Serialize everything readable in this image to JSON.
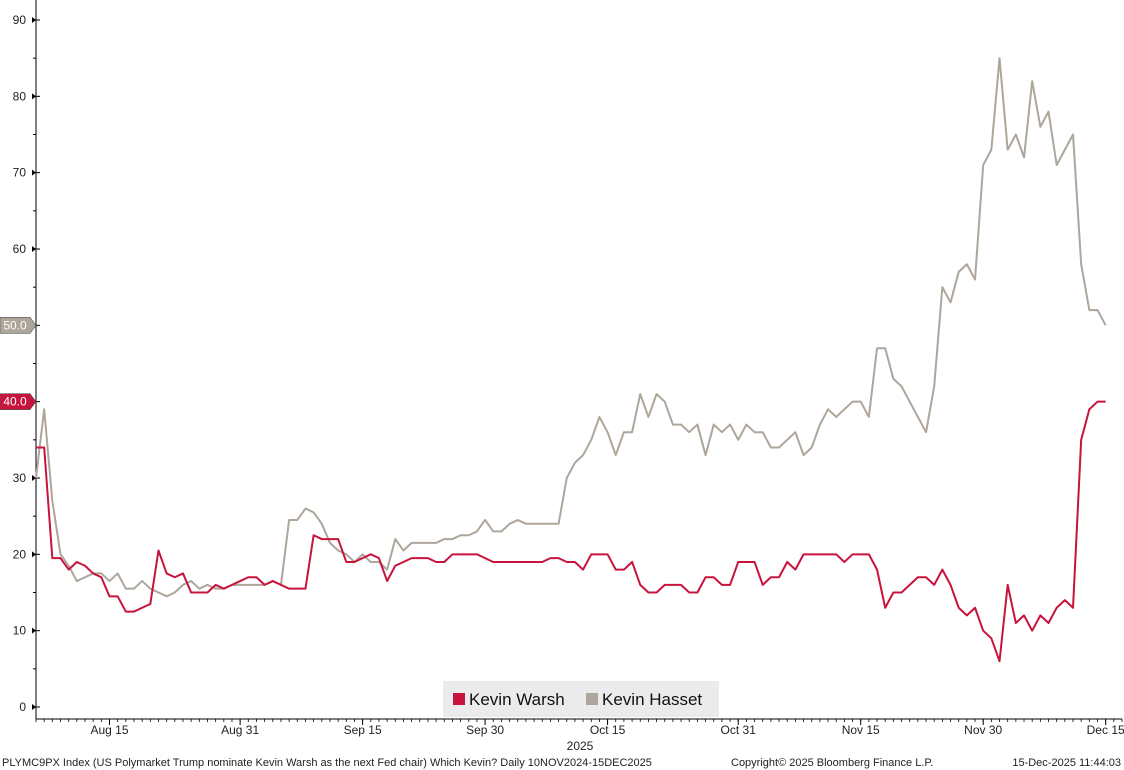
{
  "chart_data": {
    "type": "line",
    "title": "",
    "xlabel": "2025",
    "ylabel": "",
    "ylim": [
      0,
      90
    ],
    "y_ticks": [
      0,
      10,
      20,
      30,
      40,
      50,
      60,
      70,
      80,
      90
    ],
    "x_ticks": [
      "Aug 15",
      "Aug 31",
      "Sep 15",
      "Sep 30",
      "Oct 15",
      "Oct 31",
      "Nov 15",
      "Nov 30",
      "Dec 15"
    ],
    "x_tick_dates": [
      "2025-08-15",
      "2025-08-31",
      "2025-09-15",
      "2025-09-30",
      "2025-10-15",
      "2025-10-31",
      "2025-11-15",
      "2025-11-30",
      "2025-12-15"
    ],
    "x_range": [
      "2025-08-06",
      "2025-12-17"
    ],
    "grid": false,
    "legend_position": "bottom-center",
    "series": [
      {
        "name": "Kevin Warsh",
        "color": "#c8143c",
        "last_value_tag": "40.0",
        "points": [
          [
            "2025-08-06",
            34.0
          ],
          [
            "2025-08-07",
            34.0
          ],
          [
            "2025-08-08",
            19.5
          ],
          [
            "2025-08-09",
            19.5
          ],
          [
            "2025-08-10",
            18.0
          ],
          [
            "2025-08-11",
            19.0
          ],
          [
            "2025-08-12",
            18.5
          ],
          [
            "2025-08-13",
            17.5
          ],
          [
            "2025-08-14",
            17.0
          ],
          [
            "2025-08-15",
            14.5
          ],
          [
            "2025-08-16",
            14.5
          ],
          [
            "2025-08-17",
            12.5
          ],
          [
            "2025-08-18",
            12.5
          ],
          [
            "2025-08-19",
            13.0
          ],
          [
            "2025-08-20",
            13.5
          ],
          [
            "2025-08-21",
            20.5
          ],
          [
            "2025-08-22",
            17.5
          ],
          [
            "2025-08-23",
            17.0
          ],
          [
            "2025-08-24",
            17.5
          ],
          [
            "2025-08-25",
            15.0
          ],
          [
            "2025-08-26",
            15.0
          ],
          [
            "2025-08-27",
            15.0
          ],
          [
            "2025-08-28",
            16.0
          ],
          [
            "2025-08-29",
            15.5
          ],
          [
            "2025-08-30",
            16.0
          ],
          [
            "2025-08-31",
            16.5
          ],
          [
            "2025-09-01",
            17.0
          ],
          [
            "2025-09-02",
            17.0
          ],
          [
            "2025-09-03",
            16.0
          ],
          [
            "2025-09-04",
            16.5
          ],
          [
            "2025-09-05",
            16.0
          ],
          [
            "2025-09-06",
            15.5
          ],
          [
            "2025-09-07",
            15.5
          ],
          [
            "2025-09-08",
            15.5
          ],
          [
            "2025-09-09",
            22.5
          ],
          [
            "2025-09-10",
            22.0
          ],
          [
            "2025-09-11",
            22.0
          ],
          [
            "2025-09-12",
            22.0
          ],
          [
            "2025-09-13",
            19.0
          ],
          [
            "2025-09-14",
            19.0
          ],
          [
            "2025-09-15",
            19.5
          ],
          [
            "2025-09-16",
            20.0
          ],
          [
            "2025-09-17",
            19.5
          ],
          [
            "2025-09-18",
            16.5
          ],
          [
            "2025-09-19",
            18.5
          ],
          [
            "2025-09-20",
            19.0
          ],
          [
            "2025-09-21",
            19.5
          ],
          [
            "2025-09-22",
            19.5
          ],
          [
            "2025-09-23",
            19.5
          ],
          [
            "2025-09-24",
            19.0
          ],
          [
            "2025-09-25",
            19.0
          ],
          [
            "2025-09-26",
            20.0
          ],
          [
            "2025-09-27",
            20.0
          ],
          [
            "2025-09-28",
            20.0
          ],
          [
            "2025-09-29",
            20.0
          ],
          [
            "2025-09-30",
            19.5
          ],
          [
            "2025-10-01",
            19.0
          ],
          [
            "2025-10-02",
            19.0
          ],
          [
            "2025-10-03",
            19.0
          ],
          [
            "2025-10-04",
            19.0
          ],
          [
            "2025-10-05",
            19.0
          ],
          [
            "2025-10-06",
            19.0
          ],
          [
            "2025-10-07",
            19.0
          ],
          [
            "2025-10-08",
            19.5
          ],
          [
            "2025-10-09",
            19.5
          ],
          [
            "2025-10-10",
            19.0
          ],
          [
            "2025-10-11",
            19.0
          ],
          [
            "2025-10-12",
            18.0
          ],
          [
            "2025-10-13",
            20.0
          ],
          [
            "2025-10-14",
            20.0
          ],
          [
            "2025-10-15",
            20.0
          ],
          [
            "2025-10-16",
            18.0
          ],
          [
            "2025-10-17",
            18.0
          ],
          [
            "2025-10-18",
            19.0
          ],
          [
            "2025-10-19",
            16.0
          ],
          [
            "2025-10-20",
            15.0
          ],
          [
            "2025-10-21",
            15.0
          ],
          [
            "2025-10-22",
            16.0
          ],
          [
            "2025-10-23",
            16.0
          ],
          [
            "2025-10-24",
            16.0
          ],
          [
            "2025-10-25",
            15.0
          ],
          [
            "2025-10-26",
            15.0
          ],
          [
            "2025-10-27",
            17.0
          ],
          [
            "2025-10-28",
            17.0
          ],
          [
            "2025-10-29",
            16.0
          ],
          [
            "2025-10-30",
            16.0
          ],
          [
            "2025-10-31",
            19.0
          ],
          [
            "2025-11-01",
            19.0
          ],
          [
            "2025-11-02",
            19.0
          ],
          [
            "2025-11-03",
            16.0
          ],
          [
            "2025-11-04",
            17.0
          ],
          [
            "2025-11-05",
            17.0
          ],
          [
            "2025-11-06",
            19.0
          ],
          [
            "2025-11-07",
            18.0
          ],
          [
            "2025-11-08",
            20.0
          ],
          [
            "2025-11-09",
            20.0
          ],
          [
            "2025-11-10",
            20.0
          ],
          [
            "2025-11-11",
            20.0
          ],
          [
            "2025-11-12",
            20.0
          ],
          [
            "2025-11-13",
            19.0
          ],
          [
            "2025-11-14",
            20.0
          ],
          [
            "2025-11-15",
            20.0
          ],
          [
            "2025-11-16",
            20.0
          ],
          [
            "2025-11-17",
            18.0
          ],
          [
            "2025-11-18",
            13.0
          ],
          [
            "2025-11-19",
            15.0
          ],
          [
            "2025-11-20",
            15.0
          ],
          [
            "2025-11-21",
            16.0
          ],
          [
            "2025-11-22",
            17.0
          ],
          [
            "2025-11-23",
            17.0
          ],
          [
            "2025-11-24",
            16.0
          ],
          [
            "2025-11-25",
            18.0
          ],
          [
            "2025-11-26",
            16.0
          ],
          [
            "2025-11-27",
            13.0
          ],
          [
            "2025-11-28",
            12.0
          ],
          [
            "2025-11-29",
            13.0
          ],
          [
            "2025-11-30",
            10.0
          ],
          [
            "2025-12-01",
            9.0
          ],
          [
            "2025-12-02",
            6.0
          ],
          [
            "2025-12-03",
            16.0
          ],
          [
            "2025-12-04",
            11.0
          ],
          [
            "2025-12-05",
            12.0
          ],
          [
            "2025-12-06",
            10.0
          ],
          [
            "2025-12-07",
            12.0
          ],
          [
            "2025-12-08",
            11.0
          ],
          [
            "2025-12-09",
            13.0
          ],
          [
            "2025-12-10",
            14.0
          ],
          [
            "2025-12-11",
            13.0
          ],
          [
            "2025-12-12",
            35.0
          ],
          [
            "2025-12-13",
            39.0
          ],
          [
            "2025-12-14",
            40.0
          ],
          [
            "2025-12-15",
            40.0
          ]
        ]
      },
      {
        "name": "Kevin Hasset",
        "color": "#aea59b",
        "last_value_tag": "50.0",
        "points": [
          [
            "2025-08-06",
            30.0
          ],
          [
            "2025-08-07",
            39.0
          ],
          [
            "2025-08-08",
            27.0
          ],
          [
            "2025-08-09",
            20.0
          ],
          [
            "2025-08-10",
            18.5
          ],
          [
            "2025-08-11",
            16.5
          ],
          [
            "2025-08-12",
            17.0
          ],
          [
            "2025-08-13",
            17.5
          ],
          [
            "2025-08-14",
            17.5
          ],
          [
            "2025-08-15",
            16.5
          ],
          [
            "2025-08-16",
            17.5
          ],
          [
            "2025-08-17",
            15.5
          ],
          [
            "2025-08-18",
            15.5
          ],
          [
            "2025-08-19",
            16.5
          ],
          [
            "2025-08-20",
            15.5
          ],
          [
            "2025-08-21",
            15.0
          ],
          [
            "2025-08-22",
            14.5
          ],
          [
            "2025-08-23",
            15.0
          ],
          [
            "2025-08-24",
            16.0
          ],
          [
            "2025-08-25",
            16.5
          ],
          [
            "2025-08-26",
            15.5
          ],
          [
            "2025-08-27",
            16.0
          ],
          [
            "2025-08-28",
            15.5
          ],
          [
            "2025-08-29",
            15.5
          ],
          [
            "2025-08-30",
            16.0
          ],
          [
            "2025-08-31",
            16.0
          ],
          [
            "2025-09-01",
            16.0
          ],
          [
            "2025-09-02",
            16.0
          ],
          [
            "2025-09-03",
            16.0
          ],
          [
            "2025-09-04",
            16.5
          ],
          [
            "2025-09-05",
            16.0
          ],
          [
            "2025-09-06",
            24.5
          ],
          [
            "2025-09-07",
            24.5
          ],
          [
            "2025-09-08",
            26.0
          ],
          [
            "2025-09-09",
            25.5
          ],
          [
            "2025-09-10",
            24.0
          ],
          [
            "2025-09-11",
            21.5
          ],
          [
            "2025-09-12",
            20.5
          ],
          [
            "2025-09-13",
            20.0
          ],
          [
            "2025-09-14",
            19.0
          ],
          [
            "2025-09-15",
            20.0
          ],
          [
            "2025-09-16",
            19.0
          ],
          [
            "2025-09-17",
            19.0
          ],
          [
            "2025-09-18",
            18.0
          ],
          [
            "2025-09-19",
            22.0
          ],
          [
            "2025-09-20",
            20.5
          ],
          [
            "2025-09-21",
            21.5
          ],
          [
            "2025-09-22",
            21.5
          ],
          [
            "2025-09-23",
            21.5
          ],
          [
            "2025-09-24",
            21.5
          ],
          [
            "2025-09-25",
            22.0
          ],
          [
            "2025-09-26",
            22.0
          ],
          [
            "2025-09-27",
            22.5
          ],
          [
            "2025-09-28",
            22.5
          ],
          [
            "2025-09-29",
            23.0
          ],
          [
            "2025-09-30",
            24.5
          ],
          [
            "2025-10-01",
            23.0
          ],
          [
            "2025-10-02",
            23.0
          ],
          [
            "2025-10-03",
            24.0
          ],
          [
            "2025-10-04",
            24.5
          ],
          [
            "2025-10-05",
            24.0
          ],
          [
            "2025-10-06",
            24.0
          ],
          [
            "2025-10-07",
            24.0
          ],
          [
            "2025-10-08",
            24.0
          ],
          [
            "2025-10-09",
            24.0
          ],
          [
            "2025-10-10",
            30.0
          ],
          [
            "2025-10-11",
            32.0
          ],
          [
            "2025-10-12",
            33.0
          ],
          [
            "2025-10-13",
            35.0
          ],
          [
            "2025-10-14",
            38.0
          ],
          [
            "2025-10-15",
            36.0
          ],
          [
            "2025-10-16",
            33.0
          ],
          [
            "2025-10-17",
            36.0
          ],
          [
            "2025-10-18",
            36.0
          ],
          [
            "2025-10-19",
            41.0
          ],
          [
            "2025-10-20",
            38.0
          ],
          [
            "2025-10-21",
            41.0
          ],
          [
            "2025-10-22",
            40.0
          ],
          [
            "2025-10-23",
            37.0
          ],
          [
            "2025-10-24",
            37.0
          ],
          [
            "2025-10-25",
            36.0
          ],
          [
            "2025-10-26",
            37.0
          ],
          [
            "2025-10-27",
            33.0
          ],
          [
            "2025-10-28",
            37.0
          ],
          [
            "2025-10-29",
            36.0
          ],
          [
            "2025-10-30",
            37.0
          ],
          [
            "2025-10-31",
            35.0
          ],
          [
            "2025-11-01",
            37.0
          ],
          [
            "2025-11-02",
            36.0
          ],
          [
            "2025-11-03",
            36.0
          ],
          [
            "2025-11-04",
            34.0
          ],
          [
            "2025-11-05",
            34.0
          ],
          [
            "2025-11-06",
            35.0
          ],
          [
            "2025-11-07",
            36.0
          ],
          [
            "2025-11-08",
            33.0
          ],
          [
            "2025-11-09",
            34.0
          ],
          [
            "2025-11-10",
            37.0
          ],
          [
            "2025-11-11",
            39.0
          ],
          [
            "2025-11-12",
            38.0
          ],
          [
            "2025-11-13",
            39.0
          ],
          [
            "2025-11-14",
            40.0
          ],
          [
            "2025-11-15",
            40.0
          ],
          [
            "2025-11-16",
            38.0
          ],
          [
            "2025-11-17",
            47.0
          ],
          [
            "2025-11-18",
            47.0
          ],
          [
            "2025-11-19",
            43.0
          ],
          [
            "2025-11-20",
            42.0
          ],
          [
            "2025-11-21",
            40.0
          ],
          [
            "2025-11-22",
            38.0
          ],
          [
            "2025-11-23",
            36.0
          ],
          [
            "2025-11-24",
            42.0
          ],
          [
            "2025-11-25",
            55.0
          ],
          [
            "2025-11-26",
            53.0
          ],
          [
            "2025-11-27",
            57.0
          ],
          [
            "2025-11-28",
            58.0
          ],
          [
            "2025-11-29",
            56.0
          ],
          [
            "2025-11-30",
            71.0
          ],
          [
            "2025-12-01",
            73.0
          ],
          [
            "2025-12-02",
            85.0
          ],
          [
            "2025-12-03",
            73.0
          ],
          [
            "2025-12-04",
            75.0
          ],
          [
            "2025-12-05",
            72.0
          ],
          [
            "2025-12-06",
            82.0
          ],
          [
            "2025-12-07",
            76.0
          ],
          [
            "2025-12-08",
            78.0
          ],
          [
            "2025-12-09",
            71.0
          ],
          [
            "2025-12-10",
            73.0
          ],
          [
            "2025-12-11",
            75.0
          ],
          [
            "2025-12-12",
            58.0
          ],
          [
            "2025-12-13",
            52.0
          ],
          [
            "2025-12-14",
            52.0
          ],
          [
            "2025-12-15",
            50.0
          ]
        ]
      }
    ]
  },
  "footer": {
    "description": "PLYMC9PX Index (US Polymarket Trump nominate Kevin Warsh as the next Fed chair) Which Kevin? Daily 10NOV2024-15DEC2025",
    "copyright": "Copyright© 2025 Bloomberg Finance L.P.",
    "timestamp": "15-Dec-2025 11:44:03"
  }
}
